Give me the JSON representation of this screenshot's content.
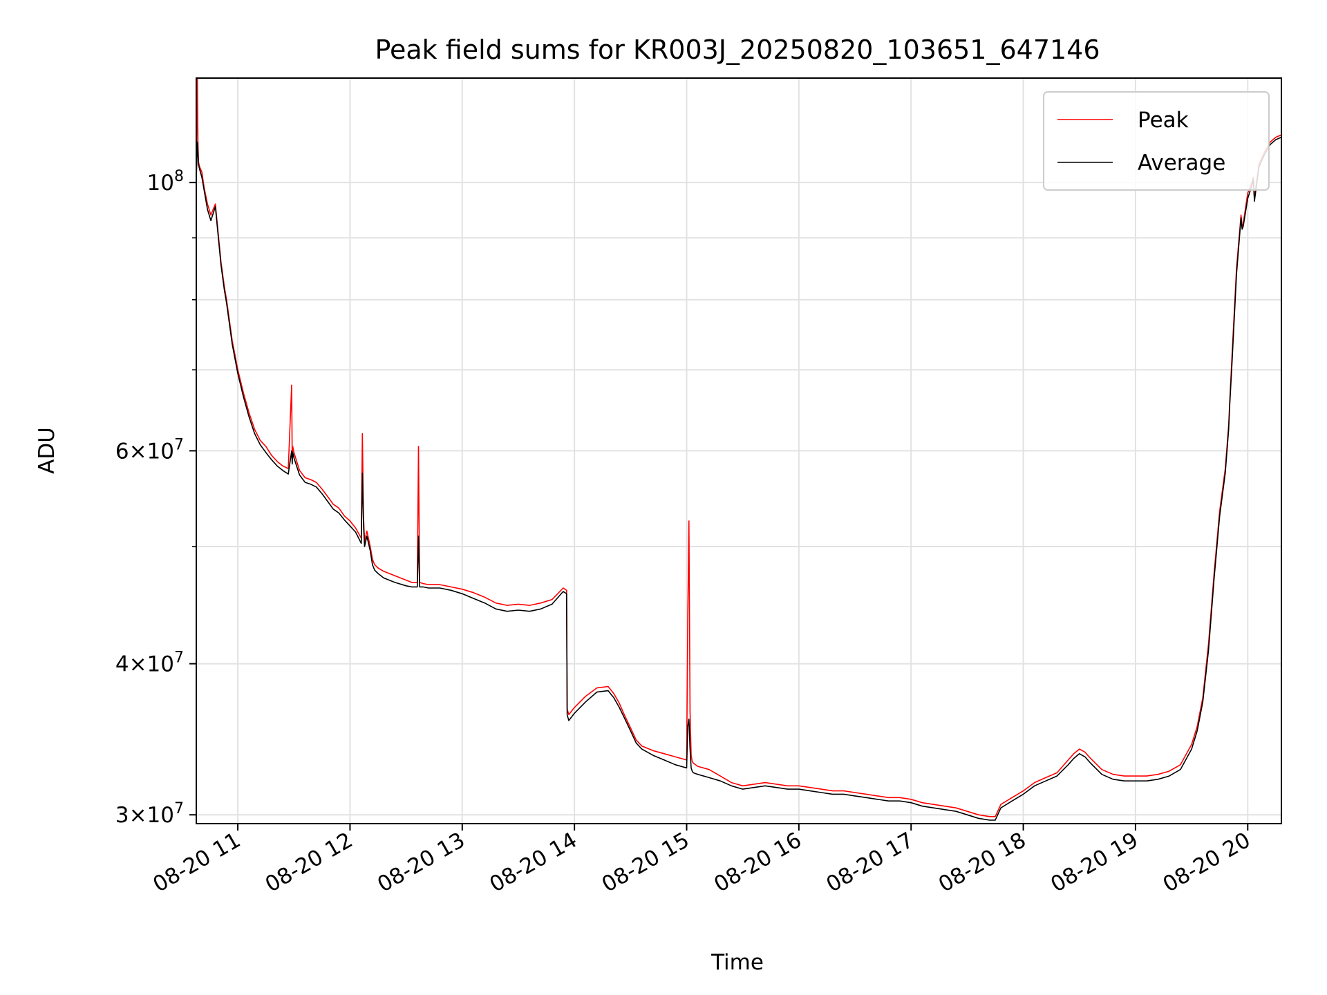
{
  "chart_data": {
    "type": "line",
    "title": "Peak field sums for KR003J_20250820_103651_647146",
    "xlabel": "Time",
    "ylabel": "ADU",
    "xlim": [
      10.63,
      20.3
    ],
    "ylim": [
      29500000,
      122000000
    ],
    "yscale": "log",
    "grid": true,
    "legend_position": "top-right",
    "x_ticks": [
      {
        "value": 11,
        "label": "08-20 11"
      },
      {
        "value": 12,
        "label": "08-20 12"
      },
      {
        "value": 13,
        "label": "08-20 13"
      },
      {
        "value": 14,
        "label": "08-20 14"
      },
      {
        "value": 15,
        "label": "08-20 15"
      },
      {
        "value": 16,
        "label": "08-20 16"
      },
      {
        "value": 17,
        "label": "08-20 17"
      },
      {
        "value": 18,
        "label": "08-20 18"
      },
      {
        "value": 19,
        "label": "08-20 19"
      },
      {
        "value": 20,
        "label": "08-20 20"
      }
    ],
    "y_ticks": [
      {
        "value": 30000000,
        "mantissa": "3",
        "exponent": "7"
      },
      {
        "value": 40000000,
        "mantissa": "4",
        "exponent": "7"
      },
      {
        "value": 60000000,
        "mantissa": "6",
        "exponent": "7"
      },
      {
        "value": 100000000,
        "mantissa": "",
        "exponent": "8"
      }
    ],
    "y_minor_ticks": [
      50000000,
      70000000,
      80000000,
      90000000
    ],
    "x_unit": "hour of 2025-08-20",
    "series": [
      {
        "name": "Peak",
        "color": "#ff0000",
        "x": [
          10.63,
          10.64,
          10.645,
          10.65,
          10.66,
          10.68,
          10.7,
          10.73,
          10.76,
          10.8,
          10.85,
          10.88,
          10.9,
          10.95,
          11.0,
          11.05,
          11.1,
          11.15,
          11.2,
          11.25,
          11.3,
          11.35,
          11.4,
          11.45,
          11.48,
          11.485,
          11.49,
          11.5,
          11.55,
          11.6,
          11.65,
          11.7,
          11.75,
          11.8,
          11.85,
          11.9,
          11.95,
          12.0,
          12.05,
          12.1,
          12.11,
          12.12,
          12.13,
          12.15,
          12.18,
          12.2,
          12.22,
          12.25,
          12.3,
          12.4,
          12.5,
          12.55,
          12.6,
          12.61,
          12.62,
          12.65,
          12.7,
          12.8,
          12.9,
          13.0,
          13.1,
          13.2,
          13.3,
          13.4,
          13.5,
          13.6,
          13.7,
          13.8,
          13.9,
          13.93,
          13.935,
          13.95,
          14.0,
          14.1,
          14.2,
          14.3,
          14.35,
          14.4,
          14.45,
          14.5,
          14.55,
          14.6,
          14.7,
          14.8,
          14.9,
          15.0,
          15.01,
          15.02,
          15.03,
          15.04,
          15.05,
          15.06,
          15.1,
          15.2,
          15.3,
          15.4,
          15.5,
          15.6,
          15.7,
          15.8,
          15.9,
          16.0,
          16.1,
          16.2,
          16.3,
          16.4,
          16.5,
          16.6,
          16.7,
          16.8,
          16.9,
          17.0,
          17.1,
          17.2,
          17.3,
          17.4,
          17.5,
          17.6,
          17.7,
          17.75,
          17.8,
          17.9,
          18.0,
          18.1,
          18.2,
          18.3,
          18.4,
          18.45,
          18.5,
          18.55,
          18.6,
          18.7,
          18.8,
          18.9,
          19.0,
          19.1,
          19.2,
          19.3,
          19.4,
          19.5,
          19.55,
          19.6,
          19.65,
          19.7,
          19.75,
          19.8,
          19.83,
          19.84,
          19.86,
          19.9,
          19.94,
          19.95,
          19.96,
          20.0,
          20.03,
          20.05,
          20.06,
          20.1,
          20.15,
          20.2,
          20.25,
          20.3
        ],
        "y": [
          102000000,
          122000000,
          108000000,
          104000000,
          103000000,
          102000000,
          99000000,
          96000000,
          94000000,
          96000000,
          86000000,
          82000000,
          80000000,
          74000000,
          70000000,
          67000000,
          64500000,
          62500000,
          61200000,
          60500000,
          59500000,
          58800000,
          58300000,
          58000000,
          68000000,
          59000000,
          60500000,
          59800000,
          57800000,
          57000000,
          56800000,
          56500000,
          55800000,
          55000000,
          54200000,
          53800000,
          53000000,
          52500000,
          51800000,
          50800000,
          62000000,
          53000000,
          50500000,
          51500000,
          50000000,
          48800000,
          48300000,
          48000000,
          47700000,
          47300000,
          46900000,
          46700000,
          46700000,
          60500000,
          46700000,
          46600000,
          46500000,
          46500000,
          46300000,
          46100000,
          45800000,
          45400000,
          44900000,
          44700000,
          44800000,
          44700000,
          44900000,
          45200000,
          46200000,
          46000000,
          36700000,
          36300000,
          36800000,
          37600000,
          38200000,
          38300000,
          37800000,
          37100000,
          36200000,
          35400000,
          34600000,
          34200000,
          33900000,
          33700000,
          33500000,
          33300000,
          43500000,
          52500000,
          36500000,
          33600000,
          33200000,
          33100000,
          32900000,
          32700000,
          32300000,
          31900000,
          31700000,
          31800000,
          31900000,
          31800000,
          31700000,
          31700000,
          31600000,
          31500000,
          31400000,
          31400000,
          31300000,
          31200000,
          31100000,
          31000000,
          31000000,
          30900000,
          30700000,
          30600000,
          30500000,
          30400000,
          30200000,
          30000000,
          29900000,
          29900000,
          30600000,
          31000000,
          31400000,
          31900000,
          32200000,
          32500000,
          33300000,
          33700000,
          34000000,
          33800000,
          33400000,
          32700000,
          32400000,
          32300000,
          32300000,
          32300000,
          32400000,
          32600000,
          33000000,
          34300000,
          35500000,
          37500000,
          41500000,
          47500000,
          53500000,
          58000000,
          63000000,
          66000000,
          72000000,
          85000000,
          94000000,
          92000000,
          92500000,
          98000000,
          99500000,
          101000000,
          97000000,
          103500000,
          106000000,
          108000000,
          109000000,
          109500000
        ]
      },
      {
        "name": "Average",
        "color": "#000000",
        "x": [
          10.63,
          10.64,
          10.645,
          10.65,
          10.66,
          10.68,
          10.7,
          10.73,
          10.76,
          10.8,
          10.85,
          10.88,
          10.9,
          10.95,
          11.0,
          11.05,
          11.1,
          11.15,
          11.2,
          11.25,
          11.3,
          11.35,
          11.4,
          11.45,
          11.48,
          11.485,
          11.49,
          11.5,
          11.55,
          11.6,
          11.65,
          11.7,
          11.75,
          11.8,
          11.85,
          11.9,
          11.95,
          12.0,
          12.05,
          12.1,
          12.11,
          12.12,
          12.13,
          12.15,
          12.18,
          12.2,
          12.22,
          12.25,
          12.3,
          12.4,
          12.5,
          12.55,
          12.6,
          12.61,
          12.62,
          12.65,
          12.7,
          12.8,
          12.9,
          13.0,
          13.1,
          13.2,
          13.3,
          13.4,
          13.5,
          13.6,
          13.7,
          13.8,
          13.9,
          13.93,
          13.935,
          13.95,
          14.0,
          14.1,
          14.2,
          14.3,
          14.35,
          14.4,
          14.45,
          14.5,
          14.55,
          14.6,
          14.7,
          14.8,
          14.9,
          15.0,
          15.01,
          15.02,
          15.03,
          15.04,
          15.05,
          15.06,
          15.1,
          15.2,
          15.3,
          15.4,
          15.5,
          15.6,
          15.7,
          15.8,
          15.9,
          16.0,
          16.1,
          16.2,
          16.3,
          16.4,
          16.5,
          16.6,
          16.7,
          16.8,
          16.9,
          17.0,
          17.1,
          17.2,
          17.3,
          17.4,
          17.5,
          17.6,
          17.7,
          17.75,
          17.8,
          17.9,
          18.0,
          18.1,
          18.2,
          18.3,
          18.4,
          18.45,
          18.5,
          18.55,
          18.6,
          18.7,
          18.8,
          18.9,
          19.0,
          19.1,
          19.2,
          19.3,
          19.4,
          19.5,
          19.55,
          19.6,
          19.65,
          19.7,
          19.75,
          19.8,
          19.83,
          19.84,
          19.86,
          19.9,
          19.94,
          19.95,
          19.96,
          20.0,
          20.03,
          20.05,
          20.06,
          20.1,
          20.15,
          20.2,
          20.25,
          20.3
        ],
        "y": [
          100500000,
          108000000,
          106000000,
          103500000,
          102500000,
          101000000,
          98500000,
          95000000,
          93000000,
          95500000,
          85500000,
          81500000,
          79500000,
          73500000,
          69500000,
          66500000,
          64000000,
          62000000,
          60700000,
          59800000,
          59000000,
          58300000,
          57800000,
          57400000,
          60000000,
          58500000,
          59800000,
          59200000,
          57300000,
          56500000,
          56300000,
          56000000,
          55300000,
          54500000,
          53700000,
          53300000,
          52600000,
          52000000,
          51400000,
          50300000,
          57500000,
          52200000,
          50000000,
          51000000,
          49600000,
          48300000,
          47800000,
          47500000,
          47100000,
          46700000,
          46400000,
          46300000,
          46300000,
          51000000,
          46300000,
          46300000,
          46200000,
          46200000,
          46000000,
          45700000,
          45300000,
          44900000,
          44400000,
          44200000,
          44300000,
          44200000,
          44400000,
          44800000,
          45900000,
          45700000,
          36300000,
          35900000,
          36400000,
          37200000,
          37900000,
          38000000,
          37500000,
          36800000,
          36000000,
          35200000,
          34400000,
          34000000,
          33600000,
          33300000,
          33000000,
          32800000,
          35500000,
          36000000,
          34000000,
          32800000,
          32600000,
          32500000,
          32400000,
          32200000,
          32000000,
          31700000,
          31500000,
          31600000,
          31700000,
          31600000,
          31500000,
          31500000,
          31400000,
          31300000,
          31200000,
          31200000,
          31100000,
          31000000,
          30900000,
          30800000,
          30800000,
          30700000,
          30500000,
          30400000,
          30300000,
          30200000,
          30000000,
          29800000,
          29700000,
          29700000,
          30400000,
          30800000,
          31200000,
          31700000,
          32000000,
          32300000,
          33000000,
          33400000,
          33700000,
          33500000,
          33100000,
          32400000,
          32100000,
          32000000,
          32000000,
          32000000,
          32100000,
          32300000,
          32700000,
          34000000,
          35200000,
          37200000,
          41000000,
          47000000,
          53000000,
          57500000,
          62500000,
          65500000,
          71000000,
          84000000,
          93500000,
          91500000,
          92000000,
          97000000,
          99000000,
          100500000,
          96500000,
          103000000,
          105500000,
          107500000,
          108500000,
          109000000
        ]
      }
    ]
  }
}
